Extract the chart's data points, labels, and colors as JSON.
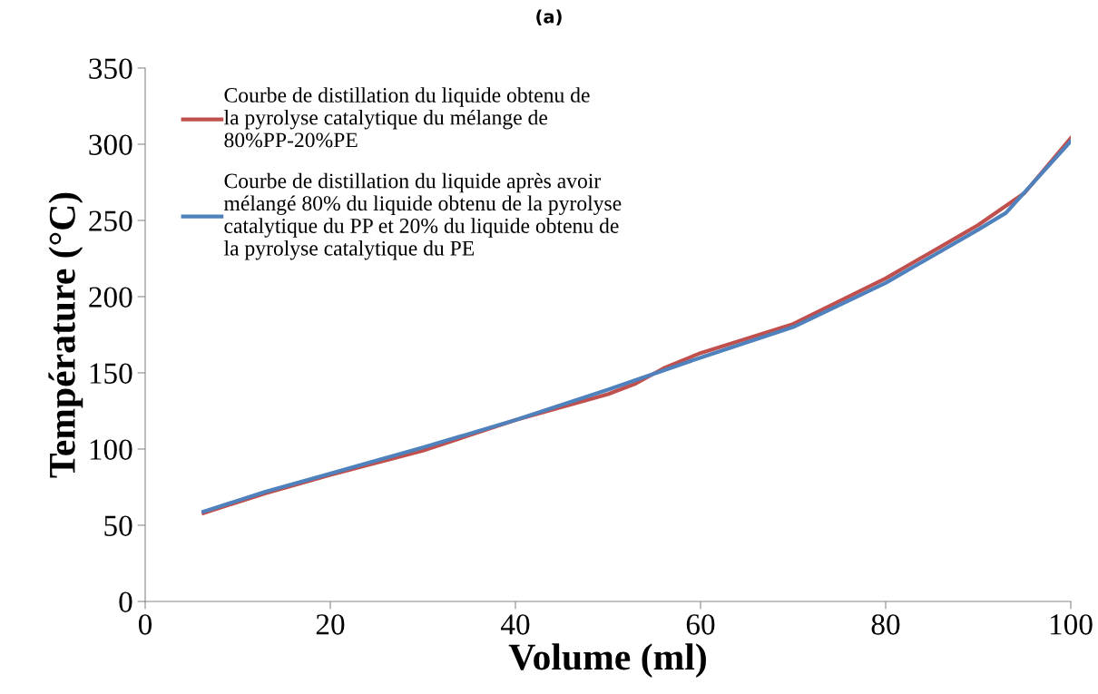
{
  "chart_data": {
    "type": "line",
    "title": "(a)",
    "xlabel": "Volume (ml)",
    "ylabel": "Température (°C)",
    "xlim": [
      0,
      100
    ],
    "xticks": [
      0,
      20,
      40,
      60,
      80,
      100
    ],
    "ylim": [
      0,
      350
    ],
    "yticks": [
      0,
      50,
      100,
      150,
      200,
      250,
      300,
      350
    ],
    "grid": false,
    "legend": "top left",
    "marker": "none",
    "line_style": "solid",
    "series": [
      {
        "name": "Courbe de distillation du liquide obtenu de la pyrolyse catalytique du mélange de 80%PP-20%PE",
        "color": "#c0504d",
        "x": [
          6.3,
          13,
          20,
          30,
          40,
          50,
          53,
          56,
          60,
          70,
          80,
          90,
          95,
          100
        ],
        "values": [
          58,
          71,
          83,
          99,
          119,
          136,
          143,
          153,
          163,
          182,
          212,
          247,
          268,
          304
        ]
      },
      {
        "name": "Courbe de distillation du liquide après avoir mélangé 80% du liquide obtenu de la pyrolyse catalytique du PP et 20% du liquide obtenu de la pyrolyse catalytique du PE",
        "color": "#4f81bd",
        "x": [
          6.3,
          13,
          20,
          30,
          40,
          50,
          60,
          70,
          80,
          90,
          93,
          100
        ],
        "values": [
          59,
          72,
          84,
          101,
          119,
          139,
          160,
          180,
          209,
          244,
          255,
          302
        ]
      }
    ]
  }
}
